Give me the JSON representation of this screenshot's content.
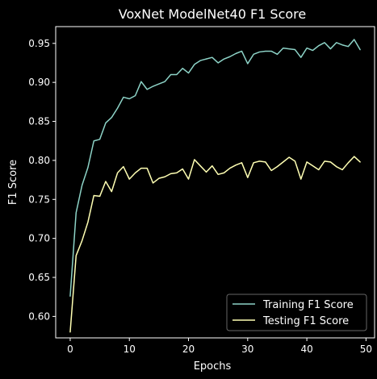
{
  "chart_data": {
    "type": "line",
    "title": "VoxNet ModelNet40 F1 Score",
    "xlabel": "Epochs",
    "ylabel": "F1 Score",
    "xlim": [
      -2.45,
      51.45
    ],
    "ylim": [
      0.5725,
      0.9715
    ],
    "xticks": [
      0,
      10,
      20,
      30,
      40,
      50
    ],
    "yticks": [
      0.6,
      0.65,
      0.7,
      0.75,
      0.8,
      0.85,
      0.9,
      0.95
    ],
    "ytick_labels": [
      "0.60",
      "0.65",
      "0.70",
      "0.75",
      "0.80",
      "0.85",
      "0.90",
      "0.95"
    ],
    "grid": false,
    "legend_position": "lower-right",
    "x": [
      0,
      1,
      2,
      3,
      4,
      5,
      6,
      7,
      8,
      9,
      10,
      11,
      12,
      13,
      14,
      15,
      16,
      17,
      18,
      19,
      20,
      21,
      22,
      23,
      24,
      25,
      26,
      27,
      28,
      29,
      30,
      31,
      32,
      33,
      34,
      35,
      36,
      37,
      38,
      39,
      40,
      41,
      42,
      43,
      44,
      45,
      46,
      47,
      48,
      49
    ],
    "series": [
      {
        "name": "Training F1 Score",
        "color": "#8dd3c7",
        "values": [
          0.626,
          0.733,
          0.768,
          0.791,
          0.825,
          0.827,
          0.848,
          0.855,
          0.867,
          0.881,
          0.879,
          0.883,
          0.901,
          0.891,
          0.895,
          0.898,
          0.901,
          0.91,
          0.91,
          0.918,
          0.912,
          0.923,
          0.928,
          0.93,
          0.932,
          0.925,
          0.93,
          0.933,
          0.937,
          0.94,
          0.924,
          0.936,
          0.939,
          0.94,
          0.94,
          0.936,
          0.944,
          0.943,
          0.942,
          0.932,
          0.944,
          0.941,
          0.947,
          0.951,
          0.943,
          0.951,
          0.948,
          0.946,
          0.955,
          0.942
        ]
      },
      {
        "name": "Testing F1 Score",
        "color": "#ffffb3",
        "values": [
          0.58,
          0.678,
          0.697,
          0.721,
          0.755,
          0.754,
          0.773,
          0.76,
          0.784,
          0.792,
          0.776,
          0.784,
          0.79,
          0.79,
          0.771,
          0.777,
          0.779,
          0.783,
          0.784,
          0.789,
          0.776,
          0.801,
          0.793,
          0.785,
          0.793,
          0.782,
          0.784,
          0.79,
          0.794,
          0.797,
          0.778,
          0.797,
          0.799,
          0.798,
          0.787,
          0.792,
          0.798,
          0.804,
          0.799,
          0.776,
          0.798,
          0.793,
          0.788,
          0.799,
          0.798,
          0.792,
          0.788,
          0.797,
          0.805,
          0.798
        ]
      }
    ]
  }
}
